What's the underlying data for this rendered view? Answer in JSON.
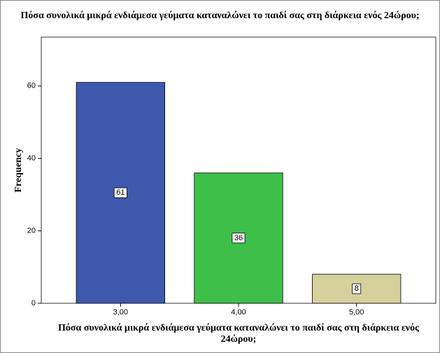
{
  "chart_data": {
    "type": "bar",
    "title": "Πόσα συνολικά μικρά ενδιάμεσα γεύματα καταναλώνει το παιδί σας στη διάρκεια ενός 24ώρου;",
    "x_label": "Πόσα συνολικά μικρά ενδιάμεσα γεύματα καταναλώνει το παιδί σας στη διάρκεια ενός 24ώρου;",
    "y_label": "Frequency",
    "categories": [
      "3,00",
      "4,00",
      "5,00"
    ],
    "values": [
      61,
      36,
      8
    ],
    "colors": [
      "#3e58ac",
      "#3ebf4a",
      "#d6d09c"
    ],
    "ylim": [
      0,
      73.5
    ],
    "yticks": [
      0,
      20,
      40,
      60
    ]
  }
}
